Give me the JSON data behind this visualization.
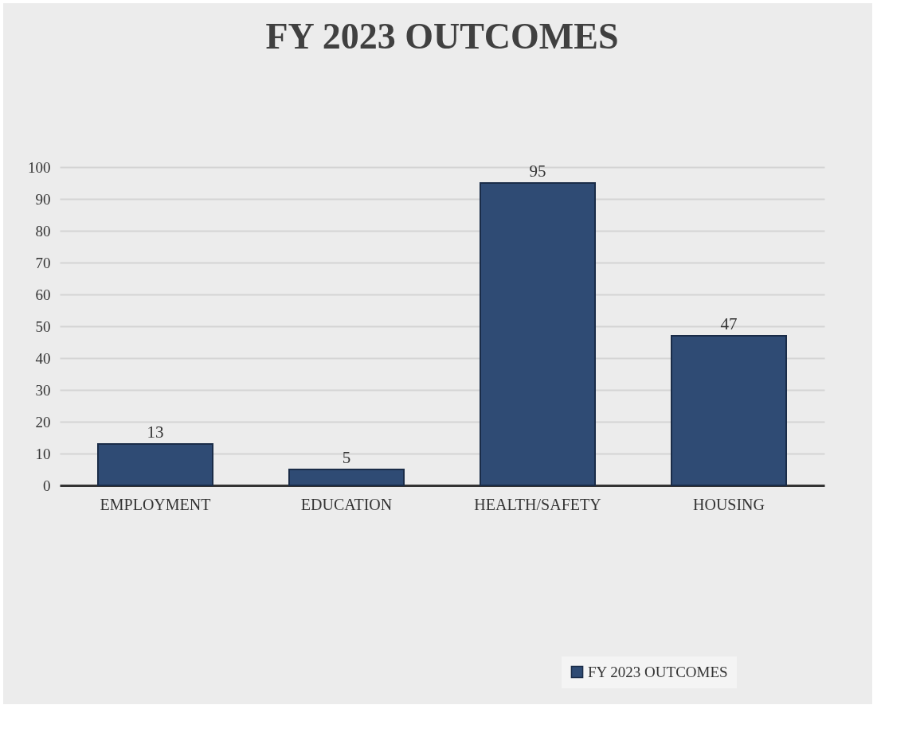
{
  "chart_data": {
    "type": "bar",
    "title": "FY 2023 OUTCOMES",
    "categories": [
      "EMPLOYMENT",
      "EDUCATION",
      "HEALTH/SAFETY",
      "HOUSING"
    ],
    "series": [
      {
        "name": "FY 2023 OUTCOMES",
        "color": "#2f4b74",
        "values": [
          13,
          5,
          95,
          47
        ]
      }
    ],
    "ylim": [
      0,
      100
    ],
    "yticks": [
      0,
      10,
      20,
      30,
      40,
      50,
      60,
      70,
      80,
      90,
      100
    ],
    "grid": "y",
    "data_labels": true,
    "legend": "bottom right"
  }
}
